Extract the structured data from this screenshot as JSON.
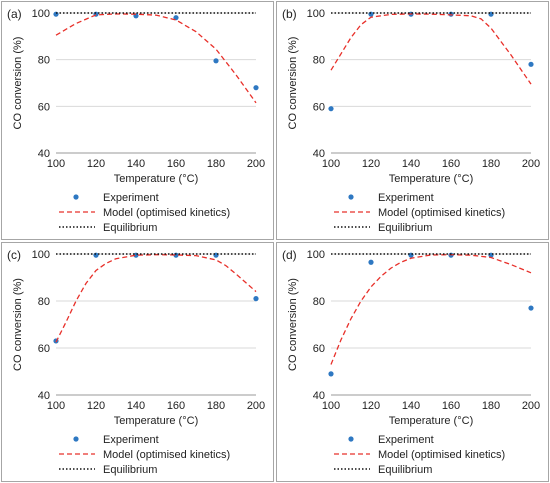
{
  "colors": {
    "experiment": "#2e78c2",
    "model": "#e8302a",
    "equilibrium": "#111111",
    "grid": "#d9d9d9",
    "axis": "#9a9a9a",
    "frame": "#a6a6a6"
  },
  "chart_data": [
    {
      "type": "scatter",
      "panel_label": "(a)",
      "xlabel": "Temperature (°C)",
      "ylabel": "CO conversion (%)",
      "xlim": [
        100,
        200
      ],
      "ylim": [
        40,
        100
      ],
      "x_ticks": [
        "100",
        "120",
        "140",
        "160",
        "180",
        "200"
      ],
      "y_ticks": [
        "40",
        "60",
        "80",
        "100"
      ],
      "grid": "horizontal",
      "legend_position": "bottom",
      "legend": [
        "Experiment",
        "Model (optimised kinetics)",
        "Equilibrium"
      ],
      "series": [
        {
          "name": "Experiment",
          "kind": "points",
          "x": [
            100,
            120,
            140,
            160,
            180,
            200
          ],
          "y": [
            99.5,
            99.5,
            98.8,
            98.0,
            79.5,
            68.0
          ]
        },
        {
          "name": "Model (optimised kinetics)",
          "kind": "dashed-line",
          "x": [
            100,
            110,
            120,
            130,
            140,
            150,
            160,
            170,
            180,
            190,
            200
          ],
          "y": [
            90.5,
            95.5,
            99.2,
            99.6,
            99.5,
            99.1,
            97.0,
            92.0,
            84.5,
            73.5,
            61.5
          ]
        },
        {
          "name": "Equilibrium",
          "kind": "dotted-line",
          "x": [
            100,
            200
          ],
          "y": [
            100,
            100
          ]
        }
      ]
    },
    {
      "type": "scatter",
      "panel_label": "(b)",
      "xlabel": "Temperature (°C)",
      "ylabel": "CO conversion (%)",
      "xlim": [
        100,
        200
      ],
      "ylim": [
        40,
        100
      ],
      "x_ticks": [
        "100",
        "120",
        "140",
        "160",
        "180",
        "200"
      ],
      "y_ticks": [
        "40",
        "60",
        "80",
        "100"
      ],
      "grid": "horizontal",
      "legend_position": "bottom",
      "legend": [
        "Experiment",
        "Model (optimised kinetics)",
        "Equilibrium"
      ],
      "series": [
        {
          "name": "Experiment",
          "kind": "points",
          "x": [
            100,
            120,
            140,
            160,
            180,
            200
          ],
          "y": [
            59.0,
            99.5,
            99.5,
            99.5,
            99.5,
            78.0
          ]
        },
        {
          "name": "Model (optimised kinetics)",
          "kind": "dashed-line",
          "x": [
            100,
            105,
            110,
            115,
            120,
            130,
            140,
            150,
            160,
            170,
            175,
            180,
            190,
            200
          ],
          "y": [
            75.5,
            82.5,
            89.5,
            95.0,
            98.2,
            99.4,
            99.6,
            99.5,
            99.2,
            98.8,
            97.5,
            93.5,
            82.0,
            69.5
          ]
        },
        {
          "name": "Equilibrium",
          "kind": "dotted-line",
          "x": [
            100,
            200
          ],
          "y": [
            100,
            100
          ]
        }
      ]
    },
    {
      "type": "scatter",
      "panel_label": "(c)",
      "xlabel": "Temperature (°C)",
      "ylabel": "CO conversion (%)",
      "xlim": [
        100,
        200
      ],
      "ylim": [
        40,
        100
      ],
      "x_ticks": [
        "100",
        "120",
        "140",
        "160",
        "180",
        "200"
      ],
      "y_ticks": [
        "40",
        "60",
        "80",
        "100"
      ],
      "grid": "horizontal",
      "legend_position": "bottom",
      "legend": [
        "Experiment",
        "Model (optimised kinetics)",
        "Equilibrium"
      ],
      "series": [
        {
          "name": "Experiment",
          "kind": "points",
          "x": [
            100,
            120,
            140,
            160,
            180,
            200
          ],
          "y": [
            63.0,
            99.5,
            99.5,
            99.5,
            99.5,
            81.0
          ]
        },
        {
          "name": "Model (optimised kinetics)",
          "kind": "dashed-line",
          "x": [
            100,
            105,
            110,
            115,
            120,
            125,
            130,
            140,
            150,
            160,
            170,
            180,
            185,
            190,
            200
          ],
          "y": [
            62.5,
            71.0,
            80.0,
            87.5,
            93.0,
            96.0,
            98.0,
            99.5,
            99.7,
            99.6,
            99.3,
            97.5,
            95.0,
            91.5,
            84.0
          ]
        },
        {
          "name": "Equilibrium",
          "kind": "dotted-line",
          "x": [
            100,
            200
          ],
          "y": [
            100,
            100
          ]
        }
      ]
    },
    {
      "type": "scatter",
      "panel_label": "(d)",
      "xlabel": "Temperature (°C)",
      "ylabel": "CO conversion (%)",
      "xlim": [
        100,
        200
      ],
      "ylim": [
        40,
        100
      ],
      "x_ticks": [
        "100",
        "120",
        "140",
        "160",
        "180",
        "200"
      ],
      "y_ticks": [
        "40",
        "60",
        "80",
        "100"
      ],
      "grid": "horizontal",
      "legend_position": "bottom",
      "legend": [
        "Experiment",
        "Model (optimised kinetics)",
        "Equilibrium"
      ],
      "series": [
        {
          "name": "Experiment",
          "kind": "points",
          "x": [
            100,
            120,
            140,
            160,
            180,
            200
          ],
          "y": [
            49.0,
            96.5,
            99.5,
            99.5,
            99.5,
            77.0
          ]
        },
        {
          "name": "Model (optimised kinetics)",
          "kind": "dashed-line",
          "x": [
            100,
            105,
            110,
            115,
            120,
            125,
            130,
            135,
            140,
            150,
            160,
            170,
            180,
            190,
            200
          ],
          "y": [
            53.0,
            63.5,
            72.5,
            80.0,
            86.0,
            90.5,
            94.0,
            96.5,
            98.2,
            99.6,
            99.7,
            99.5,
            98.5,
            95.5,
            92.0
          ]
        },
        {
          "name": "Equilibrium",
          "kind": "dotted-line",
          "x": [
            100,
            200
          ],
          "y": [
            100,
            100
          ]
        }
      ]
    }
  ]
}
